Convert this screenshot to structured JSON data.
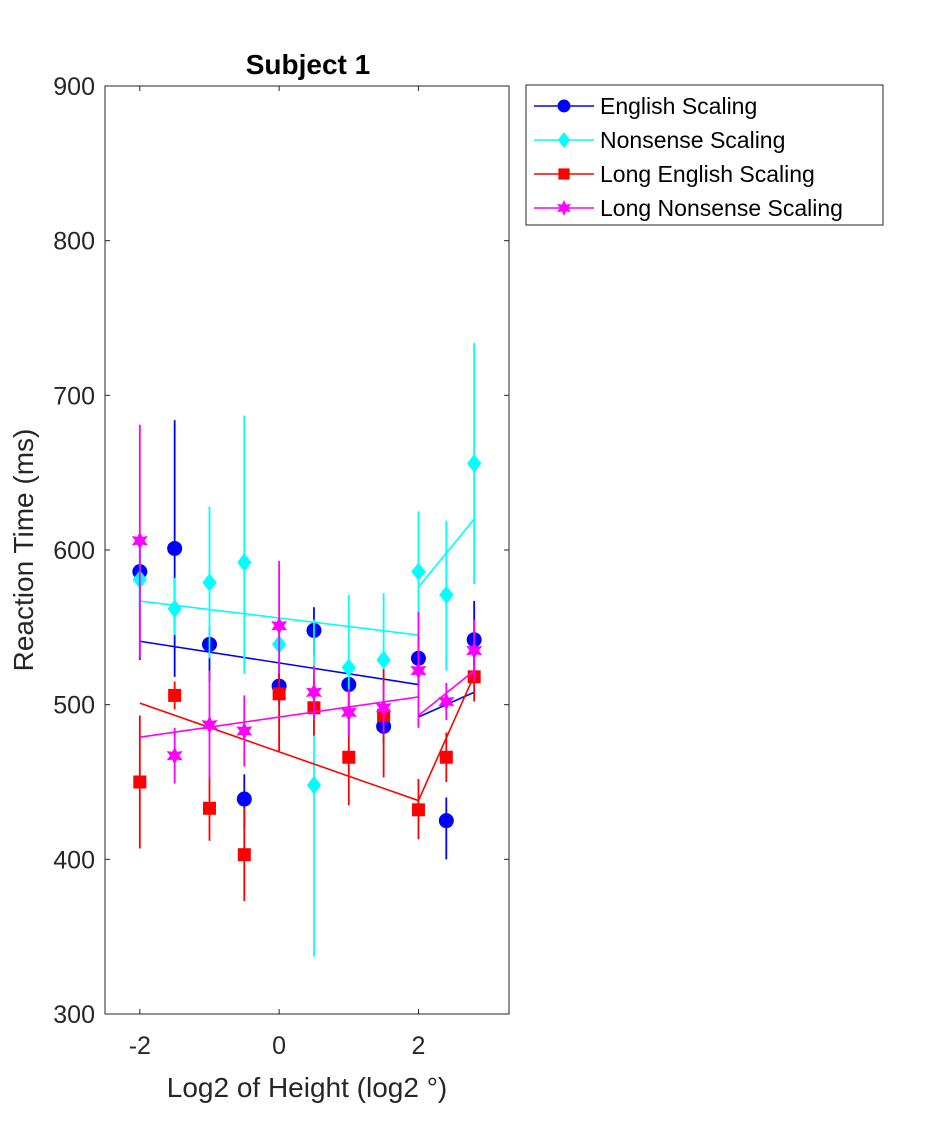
{
  "chart_data": {
    "type": "scatter",
    "title": "Subject 1",
    "xlabel": "Log2 of Height (log2 °)",
    "ylabel": "Reaction Time (ms)",
    "xlim": [
      -2.5,
      3.3
    ],
    "ylim": [
      300,
      900
    ],
    "xticks": [
      -2,
      0,
      2
    ],
    "xtick_labels": [
      "-2",
      "0",
      "2"
    ],
    "yticks": [
      300,
      400,
      500,
      600,
      700,
      800,
      900
    ],
    "ytick_labels": [
      "300",
      "400",
      "500",
      "600",
      "700",
      "800",
      "900"
    ],
    "grid": false,
    "legend_position": "outside-top-right",
    "x": [
      -2,
      -1.5,
      -1,
      -0.5,
      0,
      0.5,
      1,
      1.5,
      2,
      2.4,
      2.8
    ],
    "series": [
      {
        "name": "English Scaling",
        "color": "#0000ff",
        "marker": "circle",
        "values": [
          586,
          601,
          539,
          439,
          512,
          548,
          513,
          486,
          530,
          425,
          542
        ],
        "err_low": [
          529,
          518,
          515,
          420,
          500,
          532,
          500,
          475,
          512,
          400,
          520
        ],
        "err_high": [
          600,
          684,
          550,
          455,
          530,
          563,
          525,
          500,
          545,
          440,
          567
        ],
        "fit_lines": [
          {
            "x": [
              -2,
              2
            ],
            "y": [
              541,
              513
            ]
          },
          {
            "x": [
              2,
              2.8
            ],
            "y": [
              492,
              508
            ]
          }
        ]
      },
      {
        "name": "Nonsense Scaling",
        "color": "#00ffff",
        "marker": "diamond",
        "values": [
          581,
          562,
          579,
          592,
          539,
          448,
          524,
          529,
          586,
          571,
          656
        ],
        "err_low": [
          560,
          545,
          530,
          520,
          525,
          337,
          480,
          490,
          548,
          522,
          578
        ],
        "err_high": [
          600,
          582,
          628,
          687,
          555,
          555,
          571,
          572,
          625,
          619,
          734
        ],
        "fit_lines": [
          {
            "x": [
              -2,
              2
            ],
            "y": [
              567,
              545
            ]
          },
          {
            "x": [
              2,
              2.8
            ],
            "y": [
              576,
              620
            ]
          }
        ]
      },
      {
        "name": "Long English Scaling",
        "color": "#ff0000",
        "marker": "square",
        "values": [
          450,
          506,
          433,
          403,
          507,
          498,
          466,
          493,
          432,
          466,
          518
        ],
        "err_low": [
          407,
          497,
          412,
          373,
          470,
          480,
          435,
          453,
          413,
          450,
          502
        ],
        "err_high": [
          493,
          515,
          454,
          433,
          520,
          518,
          497,
          523,
          452,
          482,
          535
        ],
        "fit_lines": [
          {
            "x": [
              -2,
              2
            ],
            "y": [
              501,
              438
            ]
          },
          {
            "x": [
              2,
              2.8
            ],
            "y": [
              438,
              519
            ]
          }
        ]
      },
      {
        "name": "Long Nonsense Scaling",
        "color": "#ff00ff",
        "marker": "star",
        "values": [
          606,
          467,
          487,
          483,
          551,
          508,
          495,
          498,
          522,
          502,
          535
        ],
        "err_low": [
          530,
          449,
          452,
          460,
          520,
          490,
          480,
          482,
          485,
          490,
          515
        ],
        "err_high": [
          681,
          485,
          522,
          506,
          593,
          525,
          510,
          514,
          560,
          514,
          555
        ],
        "fit_lines": [
          {
            "x": [
              -2,
              2
            ],
            "y": [
              479,
              505
            ]
          },
          {
            "x": [
              2,
              2.8
            ],
            "y": [
              493,
              522
            ]
          }
        ]
      }
    ]
  }
}
